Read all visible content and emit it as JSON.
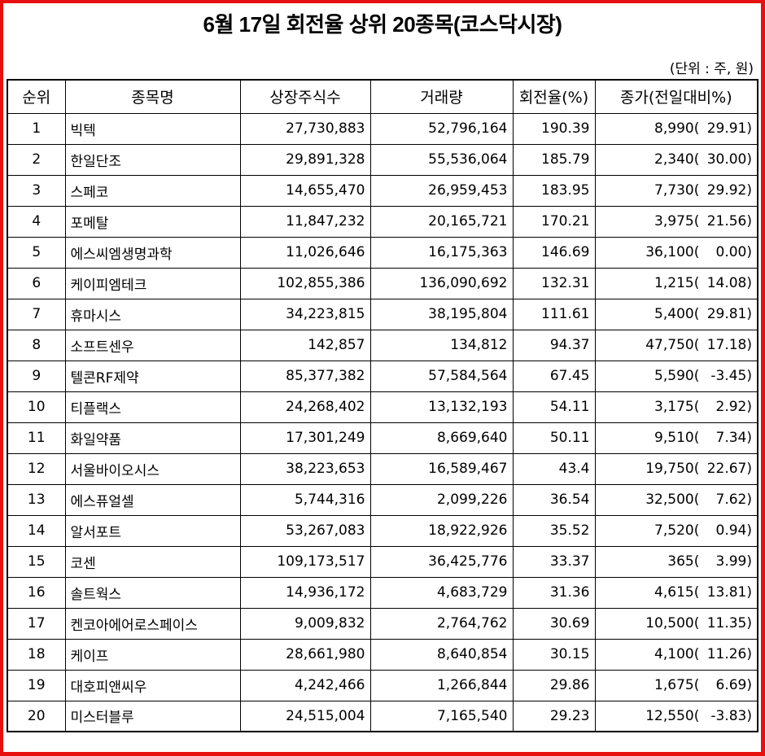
{
  "title": "6월 17일 회전율 상위 20종목(코스닥시장)",
  "unit_note": "(단위 : 주, 원)",
  "colors": {
    "frame": "#e8100f",
    "border": "#000000",
    "text": "#000000"
  },
  "table": {
    "headers": [
      "순위",
      "종목명",
      "상장주식수",
      "거래량",
      "회전율(%)",
      "종가(전일대비%)"
    ],
    "rows": [
      {
        "rank": "1",
        "name": "빅텍",
        "listed_shares": "27,730,883",
        "volume": "52,796,164",
        "turnover": "190.39",
        "close": "8,990",
        "change": "29.91"
      },
      {
        "rank": "2",
        "name": "한일단조",
        "listed_shares": "29,891,328",
        "volume": "55,536,064",
        "turnover": "185.79",
        "close": "2,340",
        "change": "30.00"
      },
      {
        "rank": "3",
        "name": "스페코",
        "listed_shares": "14,655,470",
        "volume": "26,959,453",
        "turnover": "183.95",
        "close": "7,730",
        "change": "29.92"
      },
      {
        "rank": "4",
        "name": "포메탈",
        "listed_shares": "11,847,232",
        "volume": "20,165,721",
        "turnover": "170.21",
        "close": "3,975",
        "change": "21.56"
      },
      {
        "rank": "5",
        "name": "에스씨엠생명과학",
        "listed_shares": "11,026,646",
        "volume": "16,175,363",
        "turnover": "146.69",
        "close": "36,100",
        "change": "0.00"
      },
      {
        "rank": "6",
        "name": "케이피엠테크",
        "listed_shares": "102,855,386",
        "volume": "136,090,692",
        "turnover": "132.31",
        "close": "1,215",
        "change": "14.08"
      },
      {
        "rank": "7",
        "name": "휴마시스",
        "listed_shares": "34,223,815",
        "volume": "38,195,804",
        "turnover": "111.61",
        "close": "5,400",
        "change": "29.81"
      },
      {
        "rank": "8",
        "name": "소프트센우",
        "listed_shares": "142,857",
        "volume": "134,812",
        "turnover": "94.37",
        "close": "47,750",
        "change": "17.18"
      },
      {
        "rank": "9",
        "name": "텔콘RF제약",
        "listed_shares": "85,377,382",
        "volume": "57,584,564",
        "turnover": "67.45",
        "close": "5,590",
        "change": "-3.45"
      },
      {
        "rank": "10",
        "name": "티플랙스",
        "listed_shares": "24,268,402",
        "volume": "13,132,193",
        "turnover": "54.11",
        "close": "3,175",
        "change": "2.92"
      },
      {
        "rank": "11",
        "name": "화일약품",
        "listed_shares": "17,301,249",
        "volume": "8,669,640",
        "turnover": "50.11",
        "close": "9,510",
        "change": "7.34"
      },
      {
        "rank": "12",
        "name": "서울바이오시스",
        "listed_shares": "38,223,653",
        "volume": "16,589,467",
        "turnover": "43.4",
        "close": "19,750",
        "change": "22.67"
      },
      {
        "rank": "13",
        "name": "에스퓨얼셀",
        "listed_shares": "5,744,316",
        "volume": "2,099,226",
        "turnover": "36.54",
        "close": "32,500",
        "change": "7.62"
      },
      {
        "rank": "14",
        "name": "알서포트",
        "listed_shares": "53,267,083",
        "volume": "18,922,926",
        "turnover": "35.52",
        "close": "7,520",
        "change": "0.94"
      },
      {
        "rank": "15",
        "name": "코센",
        "listed_shares": "109,173,517",
        "volume": "36,425,776",
        "turnover": "33.37",
        "close": "365",
        "change": "3.99"
      },
      {
        "rank": "16",
        "name": "솔트웍스",
        "listed_shares": "14,936,172",
        "volume": "4,683,729",
        "turnover": "31.36",
        "close": "4,615",
        "change": "13.81"
      },
      {
        "rank": "17",
        "name": "켄코아에어로스페이스",
        "listed_shares": "9,009,832",
        "volume": "2,764,762",
        "turnover": "30.69",
        "close": "10,500",
        "change": "11.35"
      },
      {
        "rank": "18",
        "name": "케이프",
        "listed_shares": "28,661,980",
        "volume": "8,640,854",
        "turnover": "30.15",
        "close": "4,100",
        "change": "11.26"
      },
      {
        "rank": "19",
        "name": "대호피앤씨우",
        "listed_shares": "4,242,466",
        "volume": "1,266,844",
        "turnover": "29.86",
        "close": "1,675",
        "change": "6.69"
      },
      {
        "rank": "20",
        "name": "미스터블루",
        "listed_shares": "24,515,004",
        "volume": "7,165,540",
        "turnover": "29.23",
        "close": "12,550",
        "change": "-3.83"
      }
    ]
  }
}
